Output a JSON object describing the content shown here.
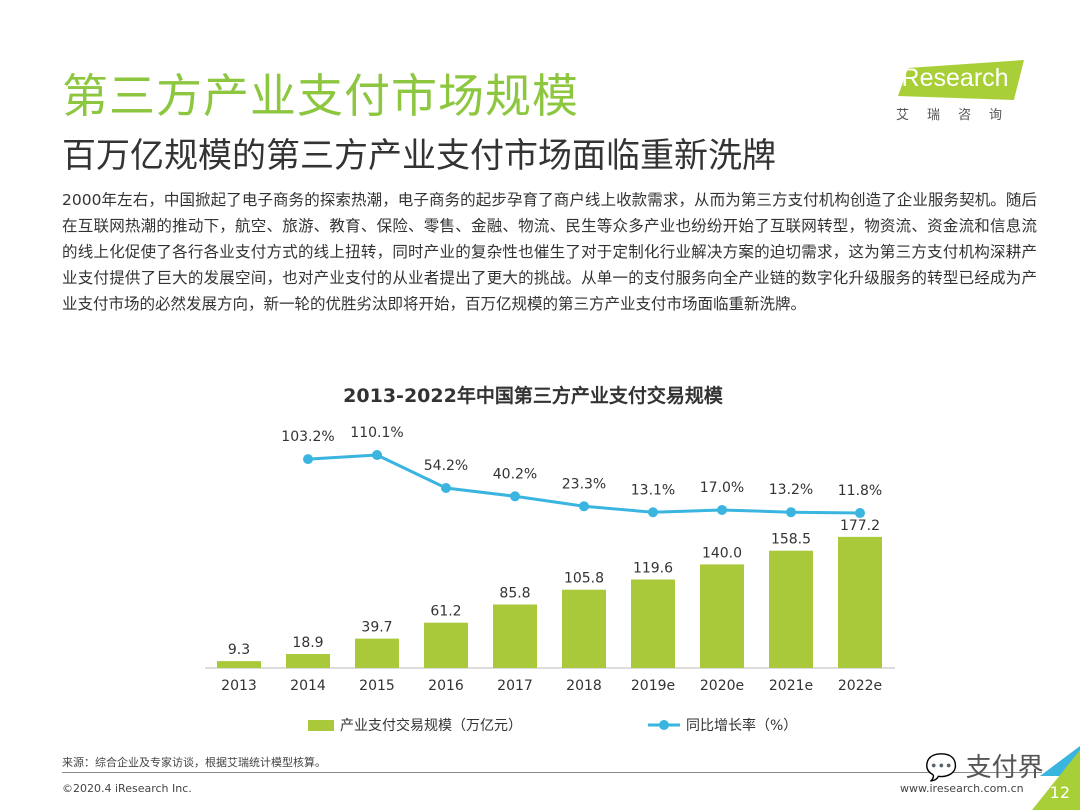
{
  "slide": {
    "title": "第三方产业支付市场规模",
    "subtitle": "百万亿规模的第三方产业支付市场面临重新洗牌",
    "paragraph": "2000年左右，中国掀起了电子商务的探索热潮，电子商务的起步孕育了商户线上收款需求，从而为第三方支付机构创造了企业服务契机。随后在互联网热潮的推动下，航空、旅游、教育、保险、零售、金融、物流、民生等众多产业也纷纷开始了互联网转型，物资流、资金流和信息流的线上化促使了各行各业支付方式的线上扭转，同时产业的复杂性也催生了对于定制化行业解决方案的迫切需求，这为第三方支付机构深耕产业支付提供了巨大的发展空间，也对产业支付的从业者提出了更大的挑战。从单一的支付服务向全产业链的数字化升级服务的转型已经成为产业支付市场的必然发展方向，新一轮的优胜劣汰即将开始，百万亿规模的第三方产业支付市场面临重新洗牌。",
    "logo_text": "iResearch",
    "logo_cn": "艾瑞咨询",
    "source": "来源：综合企业及专家访谈，根据艾瑞统计模型核算。",
    "copyright": "©2020.4 iResearch Inc.",
    "url": "www.iresearch.com.cn",
    "watermark": "支付界",
    "page_number": "12"
  },
  "colors": {
    "title": "#8dc63f",
    "bar": "#a9c93a",
    "line": "#3ab5e0"
  },
  "chart_data": {
    "type": "bar",
    "title": "2013-2022年中国第三方产业支付交易规模",
    "categories": [
      "2013",
      "2014",
      "2015",
      "2016",
      "2017",
      "2018",
      "2019e",
      "2020e",
      "2021e",
      "2022e"
    ],
    "series": [
      {
        "name": "产业支付交易规模（万亿元）",
        "type": "bar",
        "values": [
          9.3,
          18.9,
          39.7,
          61.2,
          85.8,
          105.8,
          119.6,
          140.0,
          158.5,
          177.2
        ],
        "labels": [
          "9.3",
          "18.9",
          "39.7",
          "61.2",
          "85.8",
          "105.8",
          "119.6",
          "140.0",
          "158.5",
          "177.2"
        ]
      },
      {
        "name": "同比增长率（%）",
        "type": "line",
        "values": [
          null,
          103.2,
          110.1,
          54.2,
          40.2,
          23.3,
          13.1,
          17.0,
          13.2,
          11.8
        ],
        "labels": [
          "",
          "103.2%",
          "110.1%",
          "54.2%",
          "40.2%",
          "23.3%",
          "13.1%",
          "17.0%",
          "13.2%",
          "11.8%"
        ]
      }
    ],
    "legend_position": "bottom",
    "grid": false
  }
}
